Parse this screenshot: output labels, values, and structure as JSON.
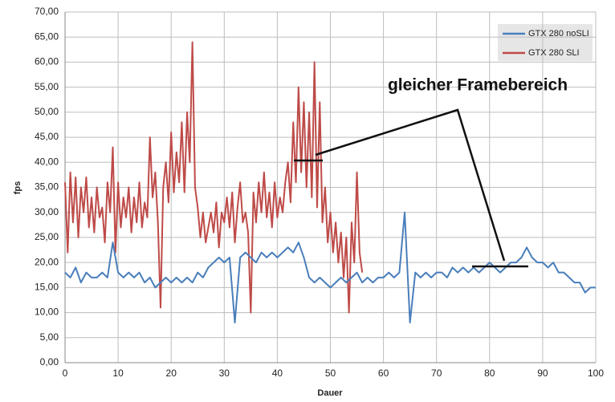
{
  "chart_data": {
    "type": "line",
    "xlabel": "Dauer",
    "ylabel": "fps",
    "annotation": "gleicher Framebereich",
    "xlim": [
      0,
      100
    ],
    "xticks": [
      0,
      10,
      20,
      30,
      40,
      50,
      60,
      70,
      80,
      90,
      100
    ],
    "ylim": [
      0,
      70
    ],
    "yticks": [
      {
        "value": 0,
        "label": "0,00"
      },
      {
        "value": 5,
        "label": "5,00"
      },
      {
        "value": 10,
        "label": "10,00"
      },
      {
        "value": 15,
        "label": "15,00"
      },
      {
        "value": 20,
        "label": "20,00"
      },
      {
        "value": 25,
        "label": "25,00"
      },
      {
        "value": 30,
        "label": "30,00"
      },
      {
        "value": 35,
        "label": "35,00"
      },
      {
        "value": 40,
        "label": "40,00"
      },
      {
        "value": 45,
        "label": "45,00"
      },
      {
        "value": 50,
        "label": "50,00"
      },
      {
        "value": 55,
        "label": "55,00"
      },
      {
        "value": 60,
        "label": "60,00"
      },
      {
        "value": 65,
        "label": "65,00"
      },
      {
        "value": 70,
        "label": "70,00"
      }
    ],
    "grid": true,
    "legend": "upper right",
    "series": [
      {
        "name": "GTX 280 noSLI",
        "color": "#4a7ebb",
        "x": [
          0,
          1,
          2,
          3,
          4,
          5,
          6,
          7,
          8,
          9,
          10,
          11,
          12,
          13,
          14,
          15,
          16,
          17,
          18,
          19,
          20,
          21,
          22,
          23,
          24,
          25,
          26,
          27,
          28,
          29,
          30,
          31,
          32,
          33,
          34,
          35,
          36,
          37,
          38,
          39,
          40,
          41,
          42,
          43,
          44,
          45,
          46,
          47,
          48,
          49,
          50,
          51,
          52,
          53,
          54,
          55,
          56,
          57,
          58,
          59,
          60,
          61,
          62,
          63,
          64,
          65,
          66,
          67,
          68,
          69,
          70,
          71,
          72,
          73,
          74,
          75,
          76,
          77,
          78,
          79,
          80,
          81,
          82,
          83,
          84,
          85,
          86,
          87,
          88,
          89,
          90,
          91,
          92,
          93,
          94,
          95,
          96,
          97,
          98,
          99,
          100
        ],
        "values": [
          18,
          17,
          19,
          16,
          18,
          17,
          17,
          18,
          17,
          24,
          18,
          17,
          18,
          17,
          18,
          16,
          17,
          15,
          16,
          17,
          16,
          17,
          16,
          17,
          16,
          18,
          17,
          19,
          20,
          21,
          20,
          21,
          8,
          21,
          22,
          21,
          20,
          22,
          21,
          22,
          21,
          22,
          23,
          22,
          24,
          21,
          17,
          16,
          17,
          16,
          15,
          16,
          17,
          16,
          17,
          18,
          16,
          17,
          16,
          17,
          17,
          18,
          17,
          18,
          30,
          8,
          18,
          17,
          18,
          17,
          18,
          18,
          17,
          19,
          18,
          19,
          18,
          19,
          18,
          19,
          20,
          19,
          18,
          19,
          20,
          20,
          21,
          23,
          21,
          20,
          20,
          19,
          20,
          18,
          18,
          17,
          16,
          16,
          14,
          15,
          15
        ]
      },
      {
        "name": "GTX 280 SLI",
        "color": "#be4b48",
        "x": [
          0,
          0.5,
          1,
          1.5,
          2,
          2.5,
          3,
          3.5,
          4,
          4.5,
          5,
          5.5,
          6,
          6.5,
          7,
          7.5,
          8,
          8.5,
          9,
          9.5,
          10,
          10.5,
          11,
          11.5,
          12,
          12.5,
          13,
          13.5,
          14,
          14.5,
          15,
          15.5,
          16,
          16.5,
          17,
          17.5,
          18,
          18.5,
          19,
          19.5,
          20,
          20.5,
          21,
          21.5,
          22,
          22.5,
          23,
          23.5,
          24,
          24.5,
          25,
          25.5,
          26,
          26.5,
          27,
          27.5,
          28,
          28.5,
          29,
          29.5,
          30,
          30.5,
          31,
          31.5,
          32,
          32.5,
          33,
          33.5,
          34,
          34.5,
          35,
          35.5,
          36,
          36.5,
          37,
          37.5,
          38,
          38.5,
          39,
          39.5,
          40,
          40.5,
          41,
          41.5,
          42,
          42.5,
          43,
          43.5,
          44,
          44.5,
          45,
          45.5,
          46,
          46.5,
          47,
          47.5,
          48,
          48.5,
          49,
          49.5,
          50,
          50.5,
          51,
          51.5,
          52,
          52.5,
          53,
          53.5,
          54,
          54.5,
          55,
          55.5,
          56
        ],
        "values": [
          36,
          22,
          38,
          28,
          37,
          25,
          35,
          30,
          37,
          27,
          33,
          26,
          35,
          29,
          31,
          24,
          36,
          30,
          43,
          22,
          36,
          27,
          33,
          29,
          35,
          26,
          33,
          28,
          36,
          27,
          32,
          29,
          45,
          33,
          38,
          28,
          11,
          35,
          40,
          32,
          46,
          34,
          42,
          36,
          48,
          34,
          50,
          40,
          64,
          35,
          31,
          25,
          30,
          24,
          27,
          30,
          26,
          32,
          23,
          30,
          28,
          33,
          27,
          34,
          24,
          31,
          36,
          28,
          30,
          26,
          10,
          34,
          28,
          36,
          30,
          38,
          29,
          34,
          27,
          36,
          29,
          33,
          30,
          36,
          40,
          32,
          48,
          36,
          55,
          38,
          52,
          35,
          50,
          33,
          60,
          31,
          52,
          28,
          35,
          24,
          30,
          22,
          28,
          20,
          26,
          17,
          25,
          10,
          28,
          20,
          38,
          22,
          18
        ]
      }
    ]
  }
}
